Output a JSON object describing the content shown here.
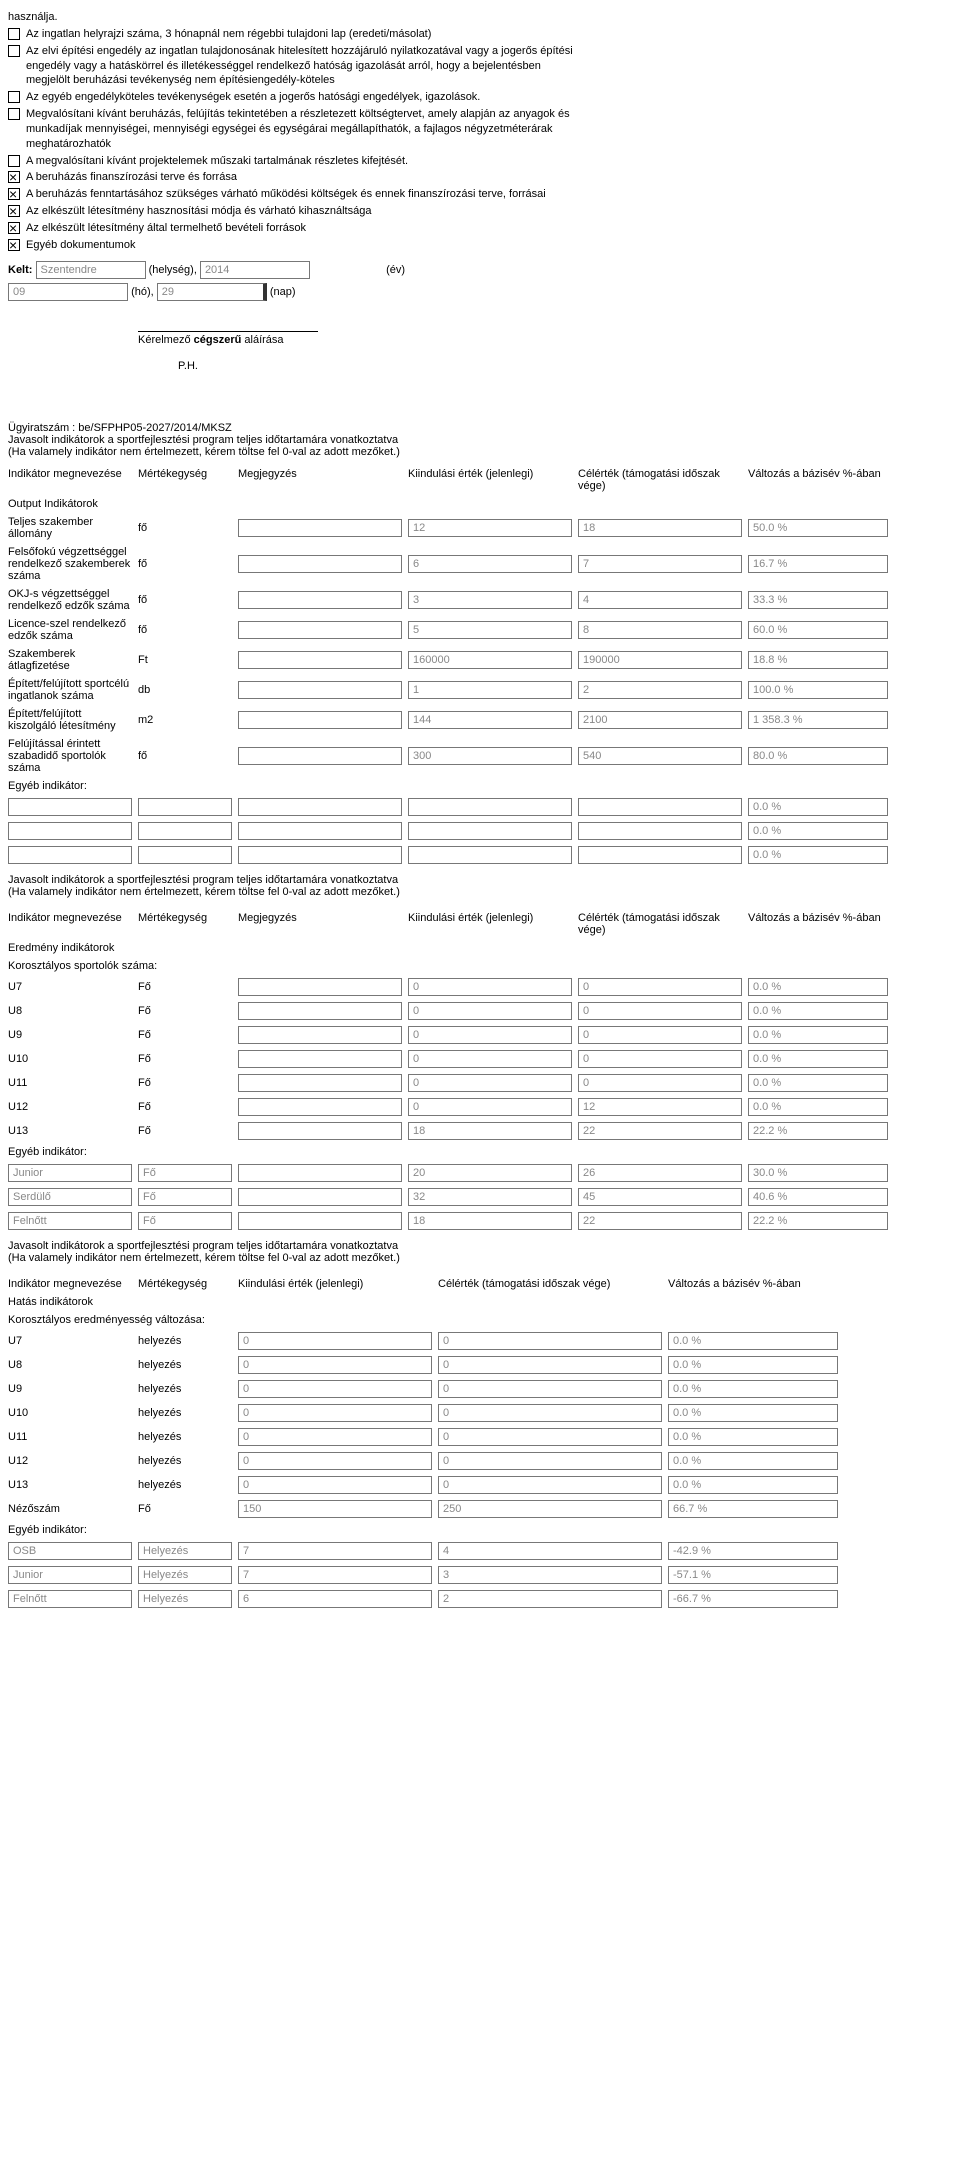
{
  "checkboxes": [
    {
      "text": "használja.",
      "checked": false,
      "bare": true
    },
    {
      "text": "Az ingatlan helyrajzi száma, 3 hónapnál nem régebbi tulajdoni lap (eredeti/másolat)",
      "checked": false
    },
    {
      "text": "Az elvi építési engedély az ingatlan tulajdonosának hitelesített hozzájáruló nyilatkozatával vagy a jogerős építési engedély vagy a hatáskörrel és illetékességgel rendelkező hatóság igazolását arról, hogy a bejelentésben megjelölt beruházási tevékenység nem építésiengedély-köteles",
      "checked": false
    },
    {
      "text": "Az egyéb engedélyköteles tevékenységek esetén a jogerős hatósági engedélyek, igazolások.",
      "checked": false
    },
    {
      "text": "Megvalósítani kívánt beruházás, felújítás tekintetében a részletezett költségtervet, amely alapján az anyagok és munkadíjak mennyiségei, mennyiségi egységei és egységárai megállapíthatók, a fajlagos négyzetméterárak meghatározhatók",
      "checked": false
    },
    {
      "text": "A megvalósítani kívánt projektelemek műszaki tartalmának részletes kifejtését.",
      "checked": false
    },
    {
      "text": "A beruházás finanszírozási terve és forrása",
      "checked": true
    },
    {
      "text": "A beruházás fenntartásához szükséges várható működési költségek és ennek finanszírozási terve, forrásai",
      "checked": true
    },
    {
      "text": "Az elkészült létesítmény hasznosítási módja és várható kihasználtsága",
      "checked": true
    },
    {
      "text": "Az elkészült létesítmény által termelhető bevételi források",
      "checked": true
    },
    {
      "text": "Egyéb dokumentumok",
      "checked": true
    }
  ],
  "kelt": {
    "label": "Kelt:",
    "city": "Szentendre",
    "city_label": "(helység),",
    "year": "2014",
    "year_label": "(év)",
    "month": "09",
    "month_label": "(hó),",
    "day": "29",
    "day_label": "(nap)"
  },
  "signature": {
    "text": "Kérelmező cégszerű aláírása",
    "ph": "P.H."
  },
  "case": {
    "label": "Ügyiratszám : be/SFPHP05-2027/2014/MKSZ",
    "desc": "Javasolt indikátorok a sportfejlesztési program teljes időtartamára vonatkoztatva\n(Ha valamely indikátor nem értelmezett, kérem töltse fel 0-val az adott mezőket.)"
  },
  "headers": {
    "h1": "Indikátor megnevezése",
    "h2": "Mértékegység",
    "h3": "Megjegyzés",
    "h4": "Kiindulási érték (jelenlegi)",
    "h5": "Célérték (támogatási időszak vége)",
    "h6": "Változás a bázisév %-ában"
  },
  "s1_title": "Output Indikátorok",
  "s1_rows": [
    {
      "name": "Teljes szakember állomány",
      "unit": "fő",
      "note": "",
      "v1": "12",
      "v2": "18",
      "v3": "50.0 %"
    },
    {
      "name": "Felsőfokú végzettséggel rendelkező szakemberek száma",
      "unit": "fő",
      "note": "",
      "v1": "6",
      "v2": "7",
      "v3": "16.7 %"
    },
    {
      "name": "OKJ-s végzettséggel rendelkező edzők száma",
      "unit": "fő",
      "note": "",
      "v1": "3",
      "v2": "4",
      "v3": "33.3 %"
    },
    {
      "name": "Licence-szel rendelkező edzők száma",
      "unit": "fő",
      "note": "",
      "v1": "5",
      "v2": "8",
      "v3": "60.0 %"
    },
    {
      "name": "Szakemberek átlagfizetése",
      "unit": "Ft",
      "note": "",
      "v1": "160000",
      "v2": "190000",
      "v3": "18.8 %"
    },
    {
      "name": "Épített/felújított sportcélú ingatlanok száma",
      "unit": "db",
      "note": "",
      "v1": "1",
      "v2": "2",
      "v3": "100.0 %"
    },
    {
      "name": "Épített/felújított kiszolgáló létesítmény",
      "unit": "m2",
      "note": "",
      "v1": "144",
      "v2": "2100",
      "v3": "1 358.3 %"
    },
    {
      "name": "Felújítással érintett szabadidő sportolók száma",
      "unit": "fő",
      "note": "",
      "v1": "300",
      "v2": "540",
      "v3": "80.0 %"
    }
  ],
  "egyeb_label": "Egyéb indikátor:",
  "s1_egyeb": [
    {
      "name": "",
      "unit": "",
      "note": "",
      "v1": "",
      "v2": "",
      "v3": "0.0 %"
    },
    {
      "name": "",
      "unit": "",
      "note": "",
      "v1": "",
      "v2": "",
      "v3": "0.0 %"
    },
    {
      "name": "",
      "unit": "",
      "note": "",
      "v1": "",
      "v2": "",
      "v3": "0.0 %"
    }
  ],
  "repeat_desc": "Javasolt indikátorok a sportfejlesztési program teljes időtartamára vonatkoztatva\n(Ha valamely indikátor nem értelmezett, kérem töltse fel 0-val az adott mezőket.)",
  "s2_title": "Eredmény indikátorok",
  "s2_sub": "Korosztályos sportolók száma:",
  "s2_rows": [
    {
      "name": "U7",
      "unit": "Fő",
      "note": "",
      "v1": "0",
      "v2": "0",
      "v3": "0.0 %"
    },
    {
      "name": "U8",
      "unit": "Fő",
      "note": "",
      "v1": "0",
      "v2": "0",
      "v3": "0.0 %"
    },
    {
      "name": "U9",
      "unit": "Fő",
      "note": "",
      "v1": "0",
      "v2": "0",
      "v3": "0.0 %"
    },
    {
      "name": "U10",
      "unit": "Fő",
      "note": "",
      "v1": "0",
      "v2": "0",
      "v3": "0.0 %"
    },
    {
      "name": "U11",
      "unit": "Fő",
      "note": "",
      "v1": "0",
      "v2": "0",
      "v3": "0.0 %"
    },
    {
      "name": "U12",
      "unit": "Fő",
      "note": "",
      "v1": "0",
      "v2": "12",
      "v3": "0.0 %"
    },
    {
      "name": "U13",
      "unit": "Fő",
      "note": "",
      "v1": "18",
      "v2": "22",
      "v3": "22.2 %"
    }
  ],
  "s2_egyeb": [
    {
      "name": "Junior",
      "unit": "Fő",
      "note": "",
      "v1": "20",
      "v2": "26",
      "v3": "30.0 %"
    },
    {
      "name": "Serdülő",
      "unit": "Fő",
      "note": "",
      "v1": "32",
      "v2": "45",
      "v3": "40.6 %"
    },
    {
      "name": "Felnőtt",
      "unit": "Fő",
      "note": "",
      "v1": "18",
      "v2": "22",
      "v3": "22.2 %"
    }
  ],
  "s3_title": "Hatás indikátorok",
  "s3_sub": "Korosztályos eredményesség változása:",
  "s3_rows": [
    {
      "name": "U7",
      "unit": "helyezés",
      "v1": "0",
      "v2": "0",
      "v3": "0.0 %"
    },
    {
      "name": "U8",
      "unit": "helyezés",
      "v1": "0",
      "v2": "0",
      "v3": "0.0 %"
    },
    {
      "name": "U9",
      "unit": "helyezés",
      "v1": "0",
      "v2": "0",
      "v3": "0.0 %"
    },
    {
      "name": "U10",
      "unit": "helyezés",
      "v1": "0",
      "v2": "0",
      "v3": "0.0 %"
    },
    {
      "name": "U11",
      "unit": "helyezés",
      "v1": "0",
      "v2": "0",
      "v3": "0.0 %"
    },
    {
      "name": "U12",
      "unit": "helyezés",
      "v1": "0",
      "v2": "0",
      "v3": "0.0 %"
    },
    {
      "name": "U13",
      "unit": "helyezés",
      "v1": "0",
      "v2": "0",
      "v3": "0.0 %"
    },
    {
      "name": "Nézőszám",
      "unit": "Fő",
      "v1": "150",
      "v2": "250",
      "v3": "66.7 %"
    }
  ],
  "s3_egyeb": [
    {
      "name": "OSB",
      "unit": "Helyezés",
      "v1": "7",
      "v2": "4",
      "v3": "-42.9 %"
    },
    {
      "name": "Junior",
      "unit": "Helyezés",
      "v1": "7",
      "v2": "3",
      "v3": "-57.1 %"
    },
    {
      "name": "Felnőtt",
      "unit": "Helyezés",
      "v1": "6",
      "v2": "2",
      "v3": "-66.7 %"
    }
  ]
}
